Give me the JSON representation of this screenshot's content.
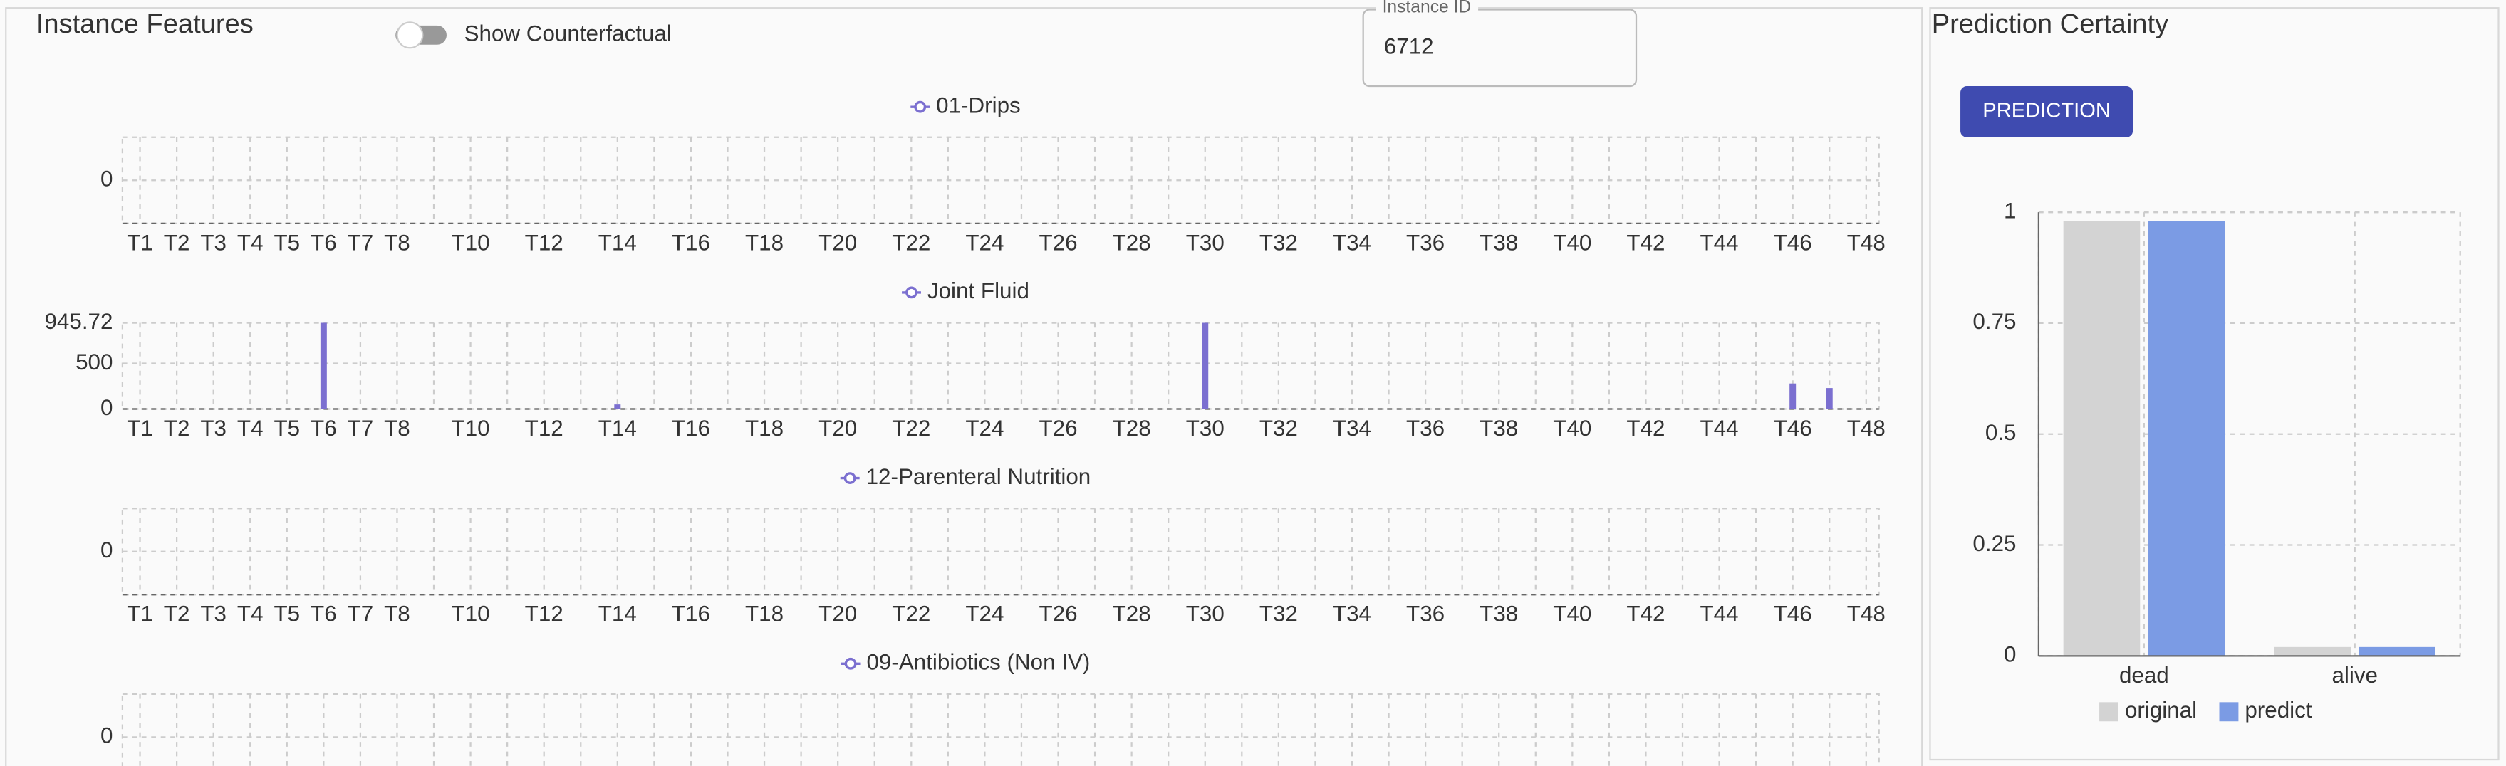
{
  "panel_title": "Instance Features",
  "toggle_label": "Show Counterfactual",
  "instance_id_label": "Instance ID",
  "instance_id": "6712",
  "prediction_panel_title": "Prediction Certainty",
  "button_label": "PREDICTION",
  "chart_data": [
    {
      "type": "bar",
      "ylim": [
        -1,
        1
      ],
      "yticks": [
        0
      ],
      "grid": true,
      "categories": [
        "T1",
        "T2",
        "T3",
        "T4",
        "T5",
        "T6",
        "T7",
        "T8",
        null,
        "T10",
        null,
        "T12",
        null,
        "T14",
        null,
        "T16",
        null,
        "T18",
        null,
        "T20",
        null,
        "T22",
        null,
        "T24",
        null,
        "T26",
        null,
        "T28",
        null,
        "T30",
        null,
        "T32",
        null,
        "T34",
        null,
        "T36",
        null,
        "T38",
        null,
        "T40",
        null,
        "T42",
        null,
        "T44",
        null,
        "T46",
        null,
        "T48"
      ],
      "series": [
        {
          "name": "01-Drips",
          "color": "#7b6fd0",
          "values": [
            0,
            0,
            0,
            0,
            0,
            0,
            0,
            0,
            0,
            0,
            0,
            0,
            0,
            0,
            0,
            0,
            0,
            0,
            0,
            0,
            0,
            0,
            0,
            0,
            0,
            0,
            0,
            0,
            0,
            0,
            0,
            0,
            0,
            0,
            0,
            0,
            0,
            0,
            0,
            0,
            0,
            0,
            0,
            0,
            0,
            0,
            0,
            0
          ]
        }
      ]
    },
    {
      "type": "bar",
      "ylim": [
        0,
        945.72
      ],
      "yticks": [
        0,
        500,
        945.72
      ],
      "grid": true,
      "categories": [
        "T1",
        "T2",
        "T3",
        "T4",
        "T5",
        "T6",
        "T7",
        "T8",
        null,
        "T10",
        null,
        "T12",
        null,
        "T14",
        null,
        "T16",
        null,
        "T18",
        null,
        "T20",
        null,
        "T22",
        null,
        "T24",
        null,
        "T26",
        null,
        "T28",
        null,
        "T30",
        null,
        "T32",
        null,
        "T34",
        null,
        "T36",
        null,
        "T38",
        null,
        "T40",
        null,
        "T42",
        null,
        "T44",
        null,
        "T46",
        null,
        "T48"
      ],
      "series": [
        {
          "name": "Joint Fluid",
          "color": "#7b6fd0",
          "values": [
            0,
            0,
            0,
            0,
            0,
            945.72,
            0,
            0,
            0,
            0,
            0,
            0,
            0,
            50,
            0,
            0,
            0,
            0,
            0,
            0,
            0,
            0,
            0,
            0,
            0,
            0,
            0,
            0,
            0,
            945.72,
            0,
            0,
            0,
            0,
            0,
            0,
            0,
            0,
            0,
            0,
            0,
            0,
            0,
            0,
            0,
            280,
            230,
            0
          ]
        }
      ]
    },
    {
      "type": "bar",
      "ylim": [
        -1,
        1
      ],
      "yticks": [
        0
      ],
      "grid": true,
      "categories": [
        "T1",
        "T2",
        "T3",
        "T4",
        "T5",
        "T6",
        "T7",
        "T8",
        null,
        "T10",
        null,
        "T12",
        null,
        "T14",
        null,
        "T16",
        null,
        "T18",
        null,
        "T20",
        null,
        "T22",
        null,
        "T24",
        null,
        "T26",
        null,
        "T28",
        null,
        "T30",
        null,
        "T32",
        null,
        "T34",
        null,
        "T36",
        null,
        "T38",
        null,
        "T40",
        null,
        "T42",
        null,
        "T44",
        null,
        "T46",
        null,
        "T48"
      ],
      "series": [
        {
          "name": "12-Parenteral Nutrition",
          "color": "#7b6fd0",
          "values": [
            0,
            0,
            0,
            0,
            0,
            0,
            0,
            0,
            0,
            0,
            0,
            0,
            0,
            0,
            0,
            0,
            0,
            0,
            0,
            0,
            0,
            0,
            0,
            0,
            0,
            0,
            0,
            0,
            0,
            0,
            0,
            0,
            0,
            0,
            0,
            0,
            0,
            0,
            0,
            0,
            0,
            0,
            0,
            0,
            0,
            0,
            0,
            0
          ]
        }
      ]
    },
    {
      "type": "bar",
      "ylim": [
        -1,
        1
      ],
      "yticks": [
        0
      ],
      "grid": true,
      "series": [
        {
          "name": "09-Antibiotics (Non IV)",
          "color": "#7b6fd0",
          "values": [
            0,
            0,
            0,
            0,
            0,
            0,
            0,
            0,
            0,
            0,
            0,
            0,
            0,
            0,
            0,
            0,
            0,
            0,
            0,
            0,
            0,
            0,
            0,
            0,
            0,
            0,
            0,
            0,
            0,
            0,
            0,
            0,
            0,
            0,
            0,
            0,
            0,
            0,
            0,
            0,
            0,
            0,
            0,
            0,
            0,
            0,
            0,
            0
          ]
        }
      ]
    },
    {
      "type": "groupedbar",
      "ylim": [
        0,
        1
      ],
      "yticks": [
        0,
        0.25,
        0.5,
        0.75,
        1
      ],
      "grid": true,
      "legend": "bottom",
      "categories": [
        "dead",
        "alive"
      ],
      "series": [
        {
          "name": "original",
          "color": "#d3d3d3",
          "values": [
            0.98,
            0.02
          ]
        },
        {
          "name": "predict",
          "color": "#7b9be4",
          "values": [
            0.98,
            0.02
          ]
        }
      ]
    }
  ]
}
